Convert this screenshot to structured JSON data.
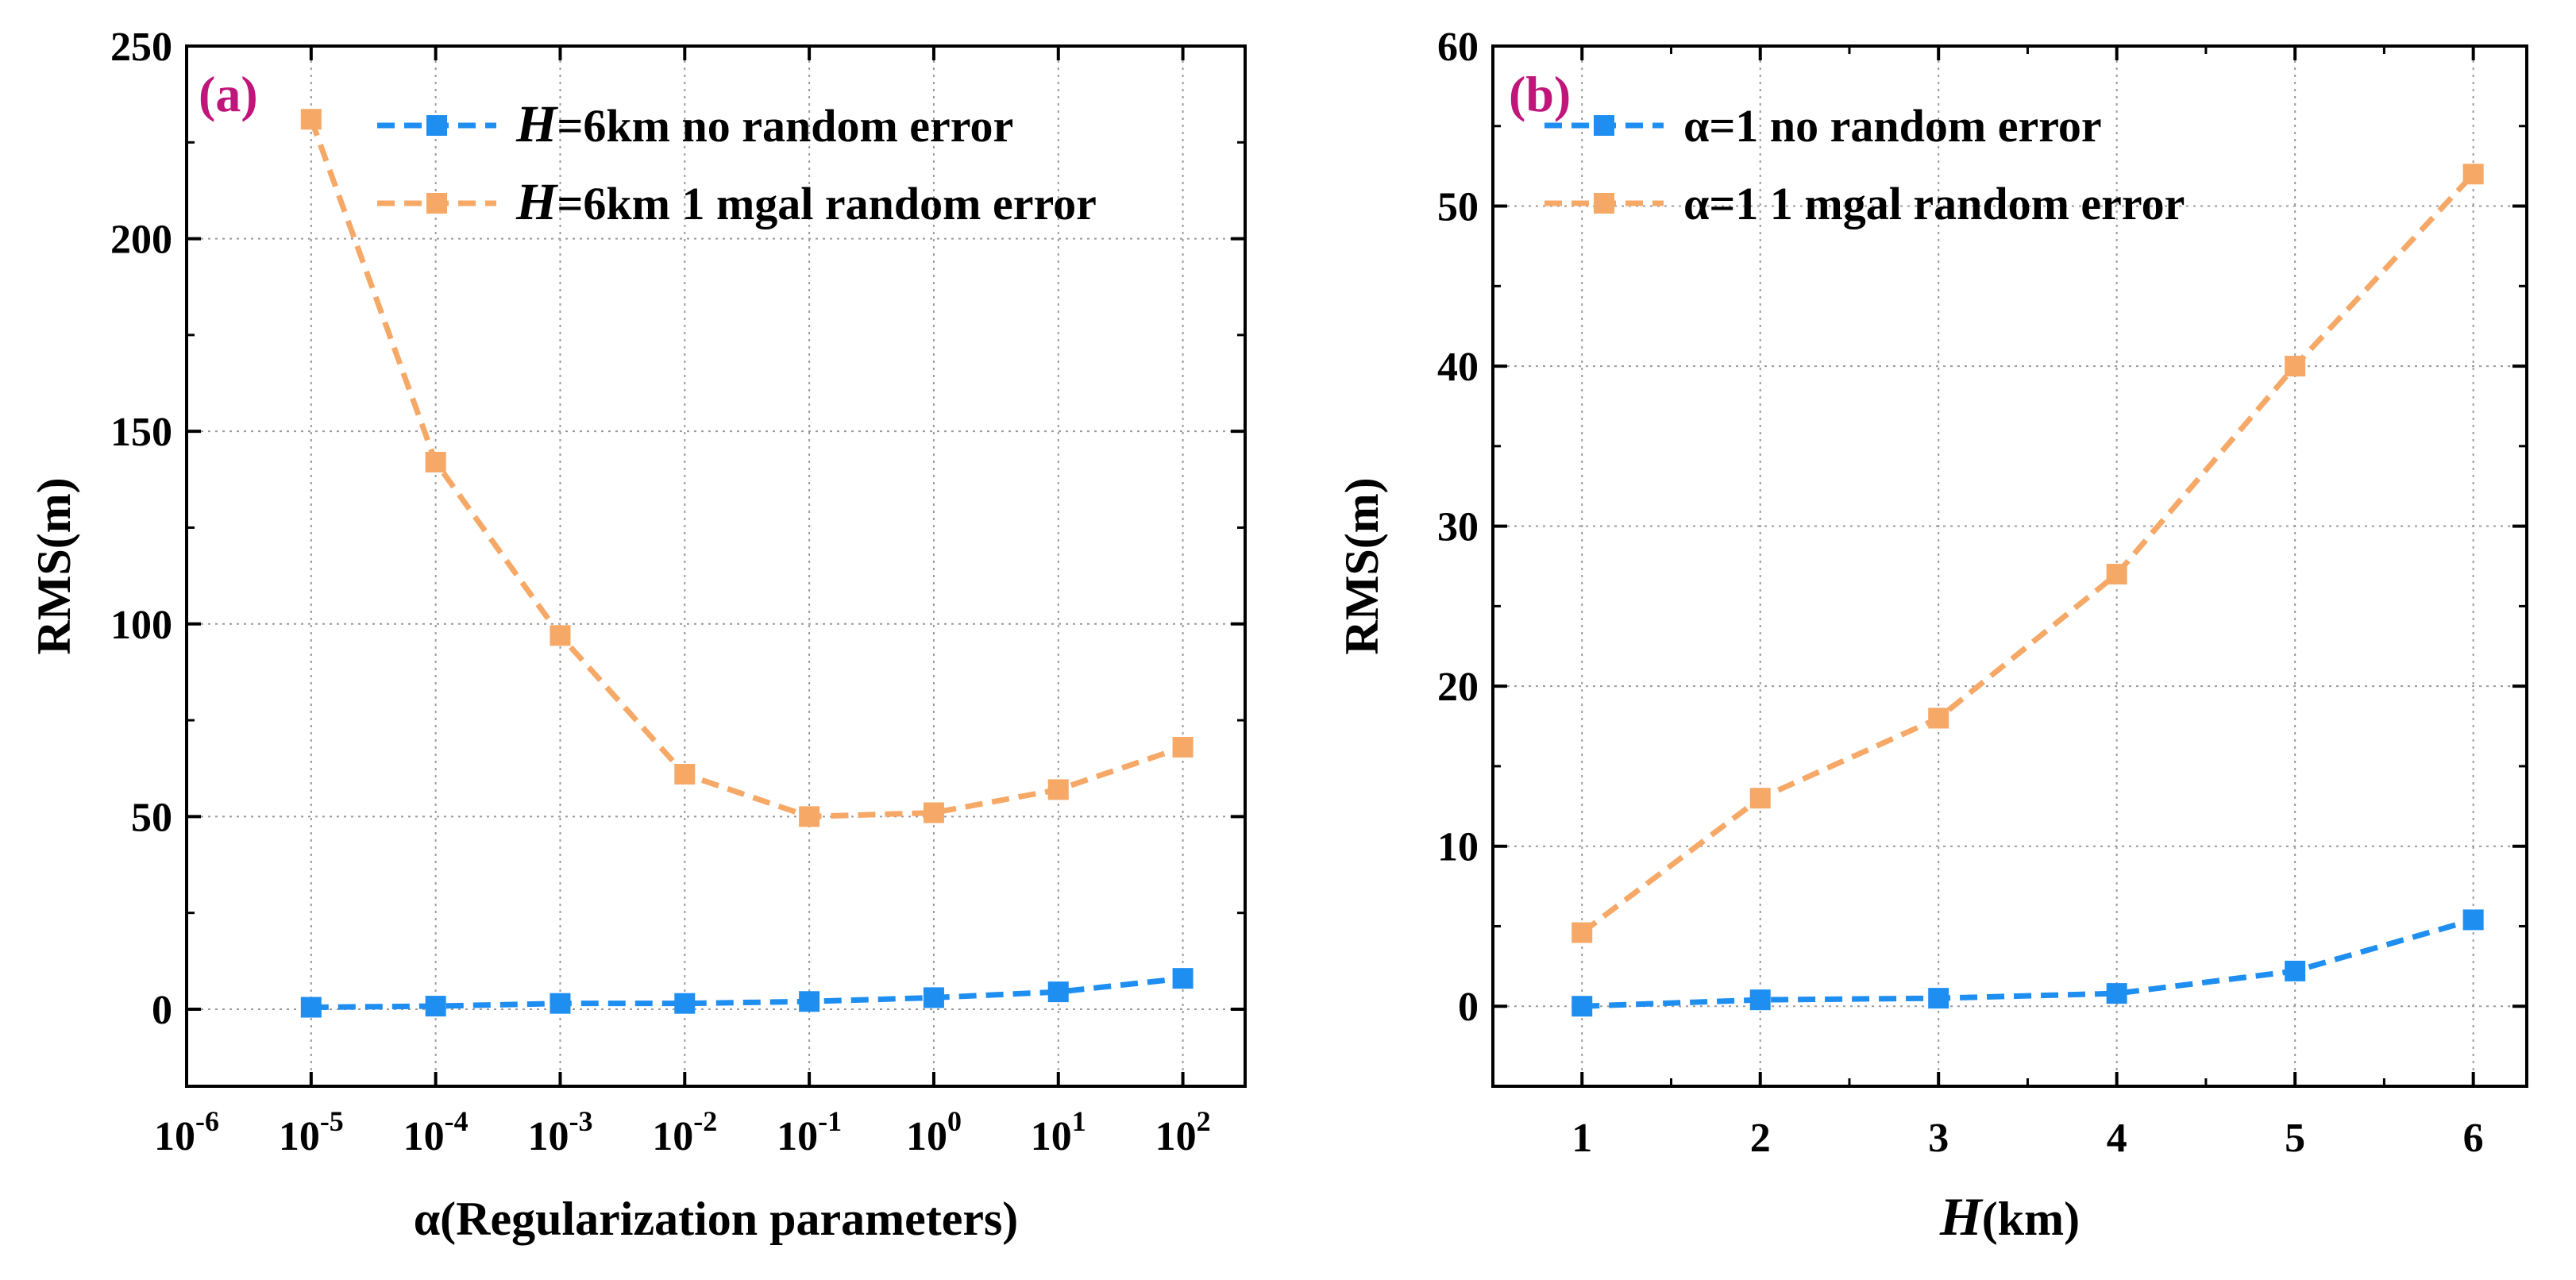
{
  "chart_data": [
    {
      "type": "line",
      "panel_label": "(a)",
      "xlabel": "α(Regularization parameters)",
      "ylabel": "RMS(m)",
      "x_scale": "log10",
      "xlim_exp": [
        -6,
        2.5
      ],
      "ylim": [
        -20,
        250
      ],
      "x_ticks": [
        {
          "base": "10",
          "exp": "-6",
          "value": -6
        },
        {
          "base": "10",
          "exp": "-5",
          "value": -5
        },
        {
          "base": "10",
          "exp": "-4",
          "value": -4
        },
        {
          "base": "10",
          "exp": "-3",
          "value": -3
        },
        {
          "base": "10",
          "exp": "-2",
          "value": -2
        },
        {
          "base": "10",
          "exp": "-1",
          "value": -1
        },
        {
          "base": "10",
          "exp": "0",
          "value": 0
        },
        {
          "base": "10",
          "exp": "1",
          "value": 1
        },
        {
          "base": "10",
          "exp": "2",
          "value": 2
        }
      ],
      "y_ticks": [
        0,
        50,
        100,
        150,
        200,
        250
      ],
      "grid": true,
      "legend_position": "top-right",
      "x": [
        -5,
        -4,
        -3,
        -2,
        -1,
        0,
        1,
        2
      ],
      "series": [
        {
          "legend_italic": "H",
          "legend_rest": "=6km  no random error",
          "color": "#1f8ef1",
          "values": [
            0.5,
            0.8,
            1.5,
            1.5,
            2,
            3,
            4.5,
            8
          ]
        },
        {
          "legend_italic": "H",
          "legend_rest": "=6km  1 mgal random error",
          "color": "#f6a867",
          "values": [
            231,
            142,
            97,
            61,
            50,
            51,
            57,
            68
          ]
        }
      ]
    },
    {
      "type": "line",
      "panel_label": "(b)",
      "xlabel_italic": "H",
      "xlabel_rest": "(km)",
      "ylabel": "RMS(m)",
      "xlim": [
        0.5,
        6.3
      ],
      "ylim": [
        -5,
        60
      ],
      "x_ticks": [
        1,
        2,
        3,
        4,
        5,
        6
      ],
      "y_ticks": [
        0,
        10,
        20,
        30,
        40,
        50,
        60
      ],
      "grid": true,
      "legend_position": "top-left",
      "x": [
        1,
        2,
        3,
        4,
        5,
        6
      ],
      "series": [
        {
          "legend_text": "α=1   no random error",
          "color": "#1f8ef1",
          "values": [
            0,
            0.4,
            0.5,
            0.8,
            2.2,
            5.4
          ]
        },
        {
          "legend_text": "α=1   1 mgal random error",
          "color": "#f6a867",
          "values": [
            4.6,
            13,
            18,
            27,
            40,
            52
          ]
        }
      ]
    }
  ]
}
